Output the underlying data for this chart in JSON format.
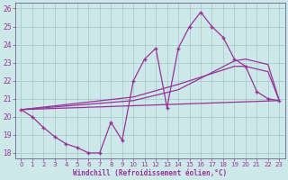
{
  "xlabel": "Windchill (Refroidissement éolien,°C)",
  "xlim": [
    -0.5,
    23.5
  ],
  "ylim": [
    17.7,
    26.3
  ],
  "yticks": [
    18,
    19,
    20,
    21,
    22,
    23,
    24,
    25,
    26
  ],
  "xticks": [
    0,
    1,
    2,
    3,
    4,
    5,
    6,
    7,
    8,
    9,
    10,
    11,
    12,
    13,
    14,
    15,
    16,
    17,
    18,
    19,
    20,
    21,
    22,
    23
  ],
  "bg_color": "#cce8e8",
  "line_color": "#993399",
  "grid_color": "#aacccc",
  "lines": [
    {
      "x": [
        0,
        1,
        2,
        3,
        4,
        5,
        6,
        7,
        8,
        9,
        10,
        11,
        12,
        13,
        14,
        15,
        16,
        17,
        18,
        19,
        20,
        21,
        22,
        23
      ],
      "y": [
        20.4,
        20.0,
        19.4,
        18.9,
        18.5,
        18.3,
        18.0,
        18.0,
        19.7,
        18.7,
        22.0,
        23.2,
        23.8,
        20.5,
        23.8,
        25.0,
        25.8,
        25.0,
        24.4,
        23.2,
        22.8,
        21.4,
        21.0,
        20.9
      ],
      "marker": true
    },
    {
      "x": [
        0,
        10,
        14,
        19,
        20,
        22,
        23
      ],
      "y": [
        20.4,
        20.9,
        21.5,
        23.1,
        23.2,
        22.9,
        20.9
      ],
      "marker": false
    },
    {
      "x": [
        0,
        10,
        14,
        19,
        20,
        22,
        23
      ],
      "y": [
        20.4,
        21.1,
        21.8,
        22.8,
        22.8,
        22.5,
        20.9
      ],
      "marker": false
    },
    {
      "x": [
        0,
        23
      ],
      "y": [
        20.4,
        20.9
      ],
      "marker": false
    }
  ]
}
